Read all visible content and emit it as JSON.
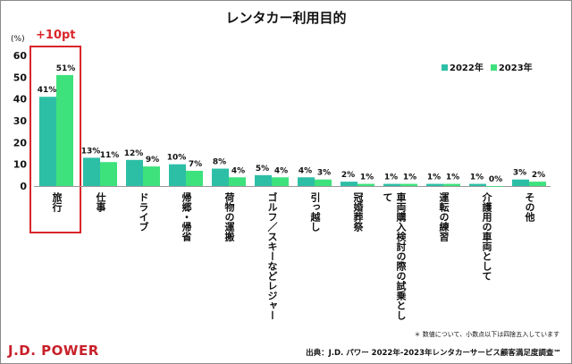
{
  "chart_data": {
    "type": "bar",
    "title": "レンタカー利用目的",
    "ylabel": "(%)",
    "ylim": [
      0,
      60
    ],
    "yticks": [
      "0",
      "10",
      "20",
      "30",
      "40",
      "50",
      "60"
    ],
    "categories": [
      "旅行",
      "仕事",
      "ドライブ",
      "帰郷・帰省",
      "荷物の運搬",
      "ゴルフ／スキーなどレジャー",
      "引っ越し",
      "冠婚葬祭",
      "車両購入検討の際の試乗として",
      "運転の練習",
      "介護用の車両として",
      "その他"
    ],
    "series": [
      {
        "name": "2022年",
        "color": "#2dbfa6",
        "values": [
          41,
          13,
          12,
          10,
          8,
          5,
          4,
          2,
          1,
          1,
          1,
          3
        ],
        "labels": [
          "41%",
          "13%",
          "12%",
          "10%",
          "8%",
          "5%",
          "4%",
          "2%",
          "1%",
          "1%",
          "1%",
          "3%"
        ]
      },
      {
        "name": "2023年",
        "color": "#3de27c",
        "values": [
          51,
          11,
          9,
          7,
          4,
          4,
          3,
          1,
          1,
          1,
          0,
          2
        ],
        "labels": [
          "51%",
          "11%",
          "9%",
          "7%",
          "4%",
          "4%",
          "3%",
          "1%",
          "1%",
          "1%",
          "0%",
          "2%"
        ]
      }
    ],
    "annotation": {
      "text": "+10pt",
      "category": "旅行",
      "color": "#d9262b"
    },
    "legend_position": "top-right",
    "grid": false
  },
  "footer": {
    "note": "＊ 数値について、小数点以下は四捨五入しています",
    "source": "出典：J.D. パワー 2022年-2023年レンタカーサービス顧客満足度調査℠",
    "logo": "J.D. POWER"
  }
}
